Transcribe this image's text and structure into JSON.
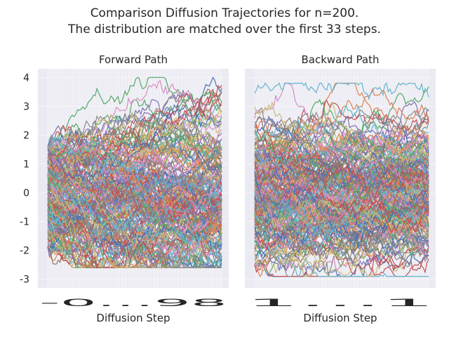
{
  "figure": {
    "title_line1": "Comparison Diffusion Trajectories for n=200.",
    "title_line2": "The distribution are matched over the first 33 steps."
  },
  "chart_data": [
    {
      "type": "line",
      "title": "Forward Path",
      "xlabel": "Diffusion Step",
      "ylabel": "",
      "n_series": 200,
      "n_steps": 100,
      "ylim": [
        -3.3,
        4.3
      ],
      "yticks": [
        "-3",
        "-2",
        "-1",
        "0",
        "1",
        "2",
        "3",
        "4"
      ],
      "xtick_labels_overlapping": "-0…98",
      "grid": true,
      "y_range_at_start": [
        -1.9,
        1.6
      ],
      "y_range_at_end": [
        -2.6,
        3.6
      ],
      "series_summary": {
        "max_value": 4.0,
        "min_value": -2.6
      },
      "palette": [
        "#4c72b0",
        "#dd8452",
        "#55a868",
        "#c44e52",
        "#8172b3",
        "#937860",
        "#da8bc3",
        "#8c8c8c",
        "#ccb974",
        "#64b5cd"
      ]
    },
    {
      "type": "line",
      "title": "Backward Path",
      "xlabel": "Diffusion Step",
      "ylabel": "",
      "n_series": 200,
      "n_steps": 100,
      "ylim": [
        -3.3,
        4.3
      ],
      "yticks": [
        "-3",
        "-2",
        "-1",
        "0",
        "1",
        "2",
        "3",
        "4"
      ],
      "xtick_labels_overlapping": "1…1",
      "grid": true,
      "y_range_at_start": [
        -2.5,
        3.7
      ],
      "y_range_at_end": [
        -1.9,
        1.7
      ],
      "series_summary": {
        "max_value": 3.8,
        "min_value": -2.9
      },
      "palette": [
        "#4c72b0",
        "#dd8452",
        "#55a868",
        "#c44e52",
        "#8172b3",
        "#937860",
        "#da8bc3",
        "#8c8c8c",
        "#ccb974",
        "#64b5cd"
      ]
    }
  ]
}
